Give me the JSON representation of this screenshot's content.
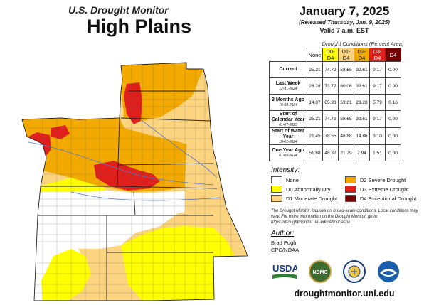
{
  "header": {
    "subtitle": "U.S. Drought Monitor",
    "title": "High Plains",
    "date": "January 7, 2025",
    "released": "(Released Thursday, Jan. 9, 2025)",
    "valid": "Valid 7 a.m. EST"
  },
  "table": {
    "title": "Drought Conditions (Percent Area)",
    "columns": [
      "None",
      "D0-D4",
      "D1-D4",
      "D2-D4",
      "D3-D4",
      "D4"
    ],
    "rows": [
      {
        "label": "Current",
        "date": "",
        "values": [
          "25.21",
          "74.79",
          "58.65",
          "32.61",
          "9.17",
          "0.00"
        ]
      },
      {
        "label": "Last Week",
        "date": "12-31-2024",
        "values": [
          "26.28",
          "73.72",
          "60.06",
          "32.61",
          "9.17",
          "0.00"
        ]
      },
      {
        "label": "3 Months Ago",
        "date": "10-08-2024",
        "values": [
          "14.07",
          "85.93",
          "59.81",
          "23.28",
          "5.79",
          "0.16"
        ]
      },
      {
        "label": "Start of Calendar Year",
        "date": "01-07-2025",
        "values": [
          "25.21",
          "74.79",
          "58.65",
          "32.61",
          "9.17",
          "0.00"
        ]
      },
      {
        "label": "Start of Water Year",
        "date": "10-01-2024",
        "values": [
          "21.45",
          "78.55",
          "48.88",
          "14.86",
          "3.10",
          "0.00"
        ]
      },
      {
        "label": "One Year Ago",
        "date": "01-09-2024",
        "values": [
          "51.68",
          "48.32",
          "21.79",
          "7.94",
          "1.51",
          "0.00"
        ]
      }
    ]
  },
  "legend": {
    "title": "Intensity:",
    "items": [
      {
        "label": "None",
        "color": "#ffffff"
      },
      {
        "label": "D2 Severe Drought",
        "color": "#f2a900"
      },
      {
        "label": "D0 Abnormally Dry",
        "color": "#ffff00"
      },
      {
        "label": "D3 Extreme Drought",
        "color": "#e0201c"
      },
      {
        "label": "D1 Moderate Drought",
        "color": "#fcd37f"
      },
      {
        "label": "D4 Exceptional Drought",
        "color": "#730000"
      }
    ]
  },
  "note": "The Drought Monitor focuses on broad-scale conditions. Local conditions may vary. For more information on the Drought Monitor, go to https://droughtmonitor.unl.edu/About.aspx",
  "author": {
    "title": "Author:",
    "name": "Brad Pugh",
    "org": "CPC/NOAA"
  },
  "logos": [
    "USDA",
    "NDMC",
    "dept-commerce-seal",
    "NOAA"
  ],
  "url": "droughtmonitor.unl.edu",
  "colors": {
    "none": "#ffffff",
    "d0": "#ffff00",
    "d1": "#fcd37f",
    "d2": "#f2a900",
    "d3": "#e0201c",
    "d4": "#730000"
  }
}
